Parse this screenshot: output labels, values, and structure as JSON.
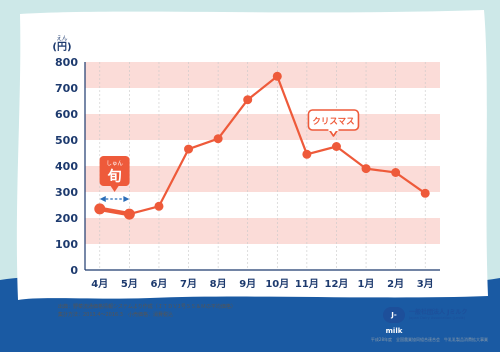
{
  "chart_data": {
    "type": "line",
    "y_unit_reading": "えん",
    "y_unit": "(円)",
    "categories": [
      "4月",
      "5月",
      "6月",
      "7月",
      "8月",
      "9月",
      "10月",
      "11月",
      "12月",
      "1月",
      "2月",
      "3月"
    ],
    "values": [
      235,
      215,
      245,
      465,
      505,
      655,
      745,
      445,
      475,
      390,
      375,
      295
    ],
    "ylim": [
      0,
      800
    ],
    "yticks": [
      "0",
      "100",
      "200",
      "300",
      "400",
      "500",
      "600",
      "700",
      "800"
    ],
    "grid": true,
    "line_color": "#ee5a3a",
    "band_color": "#fbdcd8",
    "annotations": {
      "season_reading": "しゅん",
      "season_label": "旬",
      "christmas_label": "クリスマス"
    }
  },
  "source_note_1": "出典：野菜流通価格情報システムより作成（ＩＴＤＶ1号ＳＳ＆Ｍの平均価格）",
  "source_note_2": "集計方法：2013.4～2016.3　小売価格：消費税込",
  "logo": {
    "badge": "J-milk",
    "name": "一般社団法人 Jミルク",
    "name_en": "Japan Dairy Association (J-milk)"
  },
  "footer_note": "平成28年度　全国農業協同組合連合会　牛乳乳製品消費拡大事業"
}
